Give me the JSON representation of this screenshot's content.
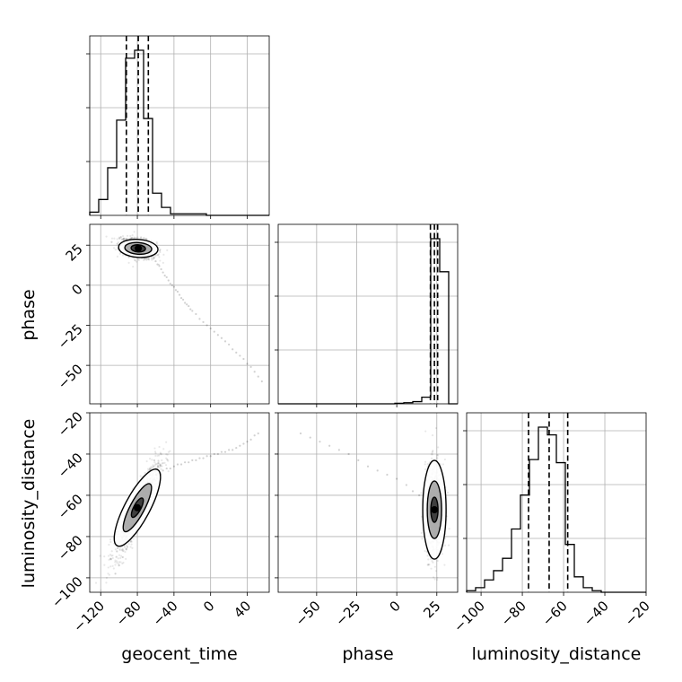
{
  "chart_data": {
    "type": "corner",
    "parameters": [
      "geocent_time",
      "phase",
      "luminosity_distance"
    ],
    "axis_labels": {
      "geocent_time": "geocent_time",
      "phase": "phase",
      "luminosity_distance": "luminosity_distance"
    },
    "ranges": {
      "geocent_time": [
        -132,
        64
      ],
      "phase": [
        -74,
        38
      ],
      "luminosity_distance": [
        -107,
        -20
      ]
    },
    "ticks": {
      "geocent_time": [
        -120,
        -80,
        -40,
        0,
        40
      ],
      "phase": [
        -50,
        -25,
        0,
        25
      ],
      "luminosity_distance": [
        -100,
        -80,
        -60,
        -40,
        -20
      ]
    },
    "tick_labels": {
      "geocent_time": [
        "−120",
        "−80",
        "−40",
        "0",
        "40"
      ],
      "phase": [
        "−50",
        "−25",
        "0",
        "25"
      ],
      "luminosity_distance": [
        "−100",
        "−80",
        "−60",
        "−40",
        "−20"
      ]
    },
    "histograms": {
      "geocent_time": {
        "edges": [
          -132,
          -122.2,
          -112.4,
          -102.6,
          -92.8,
          -83,
          -73.2,
          -63.4,
          -53.6,
          -43.8,
          -34,
          -24.2,
          -14.4,
          -4.6,
          5.2,
          15,
          24.8,
          34.6,
          44.4,
          54.2,
          64
        ],
        "counts": [
          2,
          10,
          30,
          60,
          99,
          104,
          61,
          14,
          5,
          1,
          1,
          1,
          1,
          0,
          0,
          0,
          0,
          0,
          0,
          0
        ],
        "quantiles": [
          -92,
          -79,
          -68
        ]
      },
      "phase": {
        "edges": [
          -74,
          -68.4,
          -62.8,
          -57.2,
          -51.6,
          -46,
          -40.4,
          -34.8,
          -29.2,
          -23.6,
          -18,
          -12.4,
          -6.8,
          -1.2,
          4.4,
          10,
          15.6,
          21.2,
          26.8,
          32.4,
          38
        ],
        "counts": [
          0,
          0,
          0,
          0,
          0,
          0,
          0,
          0,
          0,
          0,
          0,
          0,
          0,
          0.5,
          1,
          2,
          6,
          150,
          120,
          0
        ],
        "quantiles": [
          21,
          23.5,
          25.5
        ]
      },
      "luminosity_distance": {
        "edges": [
          -107,
          -102.65,
          -98.3,
          -93.95,
          -89.6,
          -85.25,
          -80.9,
          -76.55,
          -72.2,
          -67.85,
          -63.5,
          -59.15,
          -54.8,
          -50.45,
          -46.1,
          -41.75,
          -37.4,
          -33.05,
          -28.7,
          -24.35,
          -20
        ],
        "counts": [
          1,
          3,
          8,
          14,
          22,
          41,
          63,
          86,
          107,
          102,
          84,
          31,
          10,
          3,
          1,
          0,
          0,
          0,
          0,
          0
        ],
        "quantiles": [
          -77,
          -67,
          -58
        ]
      }
    },
    "scatter_samples": {
      "geocent_time__phase": {
        "x": [
          -98,
          -95,
          -92,
          -90,
          -88,
          -86,
          -84,
          -82,
          -80,
          -78,
          -76,
          -74,
          -72,
          -70,
          -68,
          -66,
          -64,
          -62,
          -60,
          -58,
          -56,
          -54,
          -52,
          -50,
          -48,
          -46,
          -44,
          -42,
          -40,
          -38,
          -36,
          -34,
          -32,
          -30,
          -28,
          -26,
          -24,
          -22,
          -20,
          -16,
          -12,
          -8,
          -4,
          0,
          4,
          8,
          12,
          16,
          20,
          24,
          28,
          32,
          36,
          40,
          44,
          48,
          52,
          56
        ],
        "y": [
          30,
          29,
          28,
          28,
          27,
          27,
          26,
          26,
          25,
          25,
          24,
          24,
          23,
          22,
          21,
          20,
          19,
          17,
          15,
          13,
          12,
          10,
          8,
          6,
          5,
          3,
          1,
          0,
          -1,
          -3,
          -4,
          -6,
          -8,
          -9,
          -11,
          -12,
          -13,
          -15,
          -16,
          -18,
          -21,
          -23,
          -25,
          -27,
          -29,
          -31,
          -33,
          -35,
          -37,
          -40,
          -42,
          -44,
          -46,
          -49,
          -51,
          -54,
          -57,
          -60
        ]
      },
      "geocent_time__luminosity_distance": {
        "x": [
          -104,
          -100,
          -96,
          -92,
          -88,
          -84,
          -80,
          -76,
          -72,
          -68,
          -64,
          -60,
          -56,
          -52,
          -48,
          -44,
          -40,
          -36,
          -32,
          -28,
          -24,
          -20,
          -16,
          -12,
          -8,
          -4,
          0,
          4,
          8,
          12,
          16,
          20,
          24,
          28,
          32,
          36,
          40,
          44,
          48,
          52
        ],
        "y": [
          -98,
          -94,
          -90,
          -86,
          -80,
          -76,
          -71,
          -66,
          -61,
          -57,
          -53,
          -50,
          -50,
          -48,
          -47,
          -47,
          -46,
          -45,
          -45,
          -44,
          -44,
          -43,
          -43,
          -42,
          -42,
          -41,
          -41,
          -40,
          -40,
          -39,
          -39,
          -38,
          -38,
          -37,
          -36,
          -35,
          -34,
          -33,
          -31,
          -30
        ]
      },
      "phase__luminosity_distance": {
        "x": [
          -60,
          -54,
          -48,
          -42,
          -36,
          -30,
          -24,
          -18,
          -12,
          -6,
          0,
          6,
          10,
          14,
          18,
          20,
          22,
          24,
          26,
          28
        ],
        "y": [
          -30,
          -32,
          -34,
          -36,
          -38,
          -40,
          -43,
          -46,
          -48,
          -50,
          -52,
          -55,
          -58,
          -60,
          -62,
          -64,
          -66,
          -68,
          -72,
          -76
        ]
      }
    },
    "contour_centers": {
      "geocent_time__phase": {
        "x": -79,
        "y": 23
      },
      "geocent_time__luminosity_distance": {
        "x": -80,
        "y": -66
      },
      "phase__luminosity_distance": {
        "x": 23.5,
        "y": -67
      }
    },
    "grid": true
  }
}
